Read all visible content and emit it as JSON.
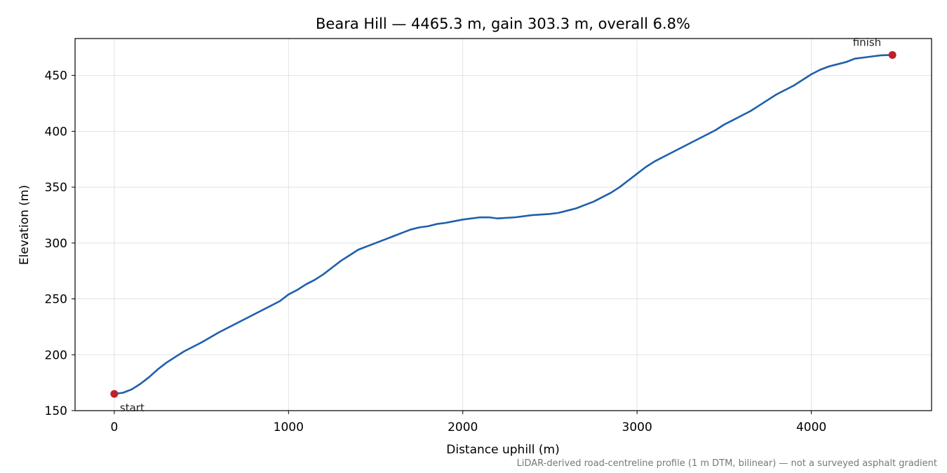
{
  "chart_data": {
    "type": "line",
    "title": "Beara Hill — 4465.3 m, gain 303.3 m, overall 6.8%",
    "xlabel": "Distance uphill (m)",
    "ylabel": "Elevation (m)",
    "xlim": [
      -225,
      4690
    ],
    "ylim": [
      150,
      483
    ],
    "xticks": [
      0,
      1000,
      2000,
      3000,
      4000
    ],
    "yticks": [
      150,
      200,
      250,
      300,
      350,
      400,
      450
    ],
    "grid": true,
    "footnote": "LiDAR-derived road-centreline profile (1 m DTM, bilinear) — not a surveyed asphalt gradient",
    "colors": {
      "line": "#1f5fad",
      "markers": "#c0202a"
    },
    "series": [
      {
        "x": [
          0,
          50,
          100,
          150,
          200,
          250,
          300,
          350,
          400,
          450,
          500,
          600,
          700,
          800,
          900,
          950,
          1000,
          1050,
          1100,
          1150,
          1200,
          1250,
          1300,
          1350,
          1400,
          1450,
          1500,
          1550,
          1600,
          1650,
          1700,
          1750,
          1800,
          1850,
          1900,
          2000,
          2100,
          2150,
          2200,
          2300,
          2400,
          2500,
          2550,
          2600,
          2650,
          2700,
          2750,
          2800,
          2850,
          2900,
          2950,
          3000,
          3050,
          3100,
          3150,
          3200,
          3250,
          3300,
          3350,
          3400,
          3450,
          3500,
          3550,
          3600,
          3650,
          3700,
          3750,
          3800,
          3850,
          3900,
          3950,
          4000,
          4050,
          4100,
          4150,
          4200,
          4250,
          4300,
          4350,
          4400,
          4465.3
        ],
        "y": [
          165,
          166,
          169,
          174,
          180,
          187,
          193,
          198,
          203,
          207,
          211,
          220,
          228,
          236,
          244,
          248,
          254,
          258,
          263,
          267,
          272,
          278,
          284,
          289,
          294,
          297,
          300,
          303,
          306,
          309,
          312,
          314,
          315,
          317,
          318,
          321,
          323,
          323,
          322,
          323,
          325,
          326,
          327,
          329,
          331,
          334,
          337,
          341,
          345,
          350,
          356,
          362,
          368,
          373,
          377,
          381,
          385,
          389,
          393,
          397,
          401,
          406,
          410,
          414,
          418,
          423,
          428,
          433,
          437,
          441,
          446,
          451,
          455,
          458,
          460,
          462,
          465,
          466,
          467,
          468,
          468.3
        ]
      }
    ],
    "annotations": [
      {
        "text": "start",
        "x": 0,
        "y": 165
      },
      {
        "text": "finish",
        "x": 4465.3,
        "y": 468.3
      }
    ]
  }
}
